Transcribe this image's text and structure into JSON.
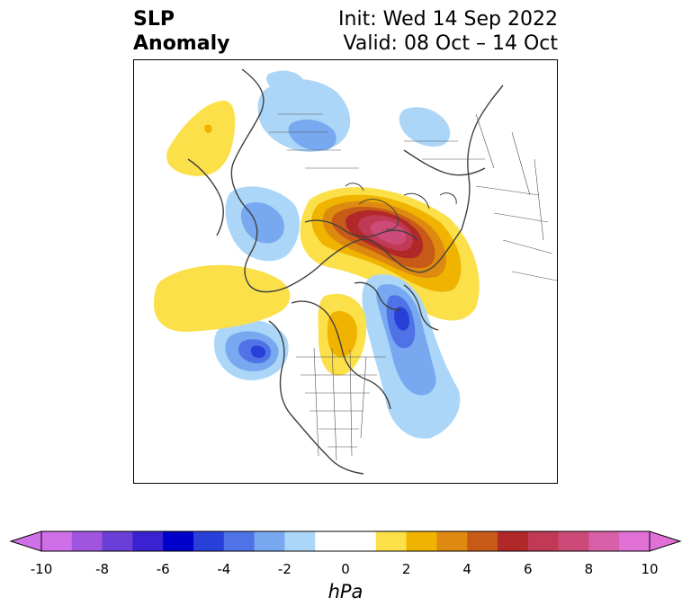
{
  "title": {
    "left_line1": "SLP",
    "left_line2": "Anomaly",
    "right_line1": "Init: Wed 14 Sep 2022",
    "right_line2": "Valid: 08 Oct – 14 Oct"
  },
  "colorbar": {
    "units": "hPa",
    "ticks": [
      "-10",
      "-8",
      "-6",
      "-4",
      "-2",
      "0",
      "2",
      "4",
      "6",
      "8",
      "10"
    ],
    "min": -10,
    "max": 10,
    "extend": "both",
    "colors": [
      "#d070e8",
      "#a055e0",
      "#6a3fd8",
      "#3a22d2",
      "#0000cc",
      "#2840d8",
      "#4f72e6",
      "#78a8f0",
      "#acd6f8",
      "#ffffff",
      "#ffffff",
      "#fbe04a",
      "#f0b400",
      "#de8a10",
      "#c85a18",
      "#b02828",
      "#c03a56",
      "#cc4a78",
      "#d860a8",
      "#e070d6"
    ]
  },
  "map": {
    "projection": "north-polar-stereographic",
    "region": "Northern Hemisphere",
    "anomaly_centers": [
      {
        "name": "arctic-high",
        "sign": "positive",
        "peak_hpa": 8
      },
      {
        "name": "alaska-low",
        "sign": "negative",
        "peak_hpa": -4
      },
      {
        "name": "north-atlantic-low",
        "sign": "negative",
        "peak_hpa": -5
      },
      {
        "name": "siberia-low",
        "sign": "negative",
        "peak_hpa": -3
      },
      {
        "name": "canada-high",
        "sign": "positive",
        "peak_hpa": 3
      },
      {
        "name": "north-pacific-high",
        "sign": "positive",
        "peak_hpa": 2
      },
      {
        "name": "east-asia-high",
        "sign": "positive",
        "peak_hpa": 2
      }
    ]
  }
}
